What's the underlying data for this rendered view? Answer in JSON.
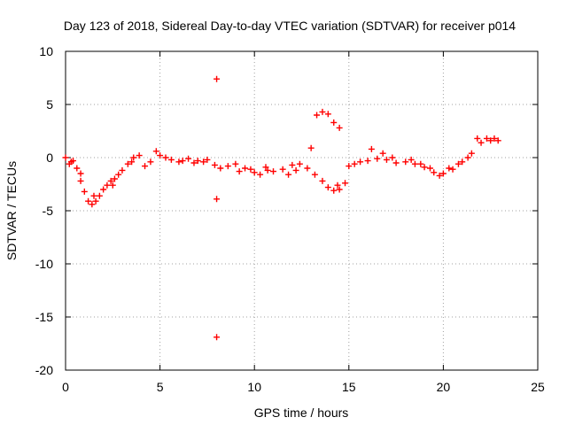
{
  "chart_data": {
    "type": "scatter",
    "title": "Day 123 of 2018, Sidereal Day-to-day VTEC variation (SDTVAR) for receiver p014",
    "xlabel": "GPS time / hours",
    "ylabel": "SDTVAR / TECUs",
    "xlim": [
      0,
      25
    ],
    "ylim": [
      -20,
      10
    ],
    "x_ticks": [
      "0",
      "5",
      "10",
      "15",
      "20",
      "25"
    ],
    "y_ticks": [
      "10",
      "5",
      "0",
      "-5",
      "-10",
      "-15",
      "-20"
    ],
    "grid": true,
    "marker": "+",
    "color": "#ff0000",
    "series": [
      {
        "name": "SDTVAR",
        "x": [
          0.0,
          0.2,
          0.4,
          0.6,
          0.8,
          1.0,
          1.2,
          1.4,
          1.6,
          1.8,
          2.0,
          2.2,
          2.4,
          2.6,
          2.8,
          3.0,
          3.3,
          3.6,
          3.9,
          4.2,
          4.5,
          4.8,
          5.0,
          5.3,
          5.6,
          6.0,
          6.5,
          7.0,
          7.5,
          7.9,
          8.0,
          8.0,
          8.0,
          8.2,
          8.6,
          9.0,
          9.5,
          10.0,
          10.3,
          10.7,
          11.0,
          11.5,
          12.0,
          12.4,
          12.8,
          13.2,
          13.6,
          13.9,
          14.2,
          14.5,
          14.8,
          15.0,
          15.3,
          15.6,
          16.0,
          16.5,
          17.0,
          17.5,
          18.0,
          18.5,
          19.0,
          19.5,
          20.0,
          20.5,
          21.0,
          21.5,
          22.0,
          22.5,
          22.9,
          0.3,
          0.8,
          1.5,
          2.5,
          3.5,
          6.2,
          6.8,
          7.3,
          9.2,
          9.8,
          10.6,
          11.8,
          12.2,
          13.0,
          13.3,
          13.6,
          13.9,
          14.2,
          14.5,
          14.4,
          16.2,
          16.8,
          17.3,
          18.3,
          18.8,
          19.3,
          19.8,
          20.3,
          20.8,
          21.3,
          21.8,
          22.3,
          22.7
        ],
        "y": [
          0.0,
          -0.6,
          -0.3,
          -1.0,
          -2.2,
          -3.2,
          -4.1,
          -4.4,
          -4.1,
          -3.6,
          -3.0,
          -2.6,
          -2.2,
          -2.0,
          -1.6,
          -1.2,
          -0.6,
          0.0,
          0.2,
          -0.8,
          -0.4,
          0.6,
          0.2,
          0.0,
          -0.2,
          -0.4,
          -0.1,
          -0.3,
          -0.2,
          -0.7,
          7.4,
          -3.9,
          -16.9,
          -1.0,
          -0.8,
          -0.6,
          -1.0,
          -1.4,
          -1.6,
          -1.2,
          -1.3,
          -1.1,
          -0.7,
          -0.6,
          -1.0,
          -1.6,
          -2.2,
          -2.8,
          -3.1,
          -3.0,
          -2.4,
          -0.8,
          -0.6,
          -0.4,
          -0.3,
          -0.1,
          -0.2,
          -0.5,
          -0.4,
          -0.6,
          -0.9,
          -1.4,
          -1.5,
          -1.1,
          -0.4,
          0.4,
          1.4,
          1.6,
          1.6,
          -0.4,
          -1.5,
          -3.6,
          -2.6,
          -0.4,
          -0.3,
          -0.5,
          -0.4,
          -1.3,
          -1.1,
          -0.9,
          -1.6,
          -1.2,
          0.9,
          4.0,
          4.3,
          4.1,
          3.3,
          2.8,
          -2.6,
          0.8,
          0.4,
          0.0,
          -0.2,
          -0.6,
          -1.0,
          -1.7,
          -1.0,
          -0.6,
          0.0,
          1.8,
          1.8,
          1.8
        ]
      }
    ]
  }
}
